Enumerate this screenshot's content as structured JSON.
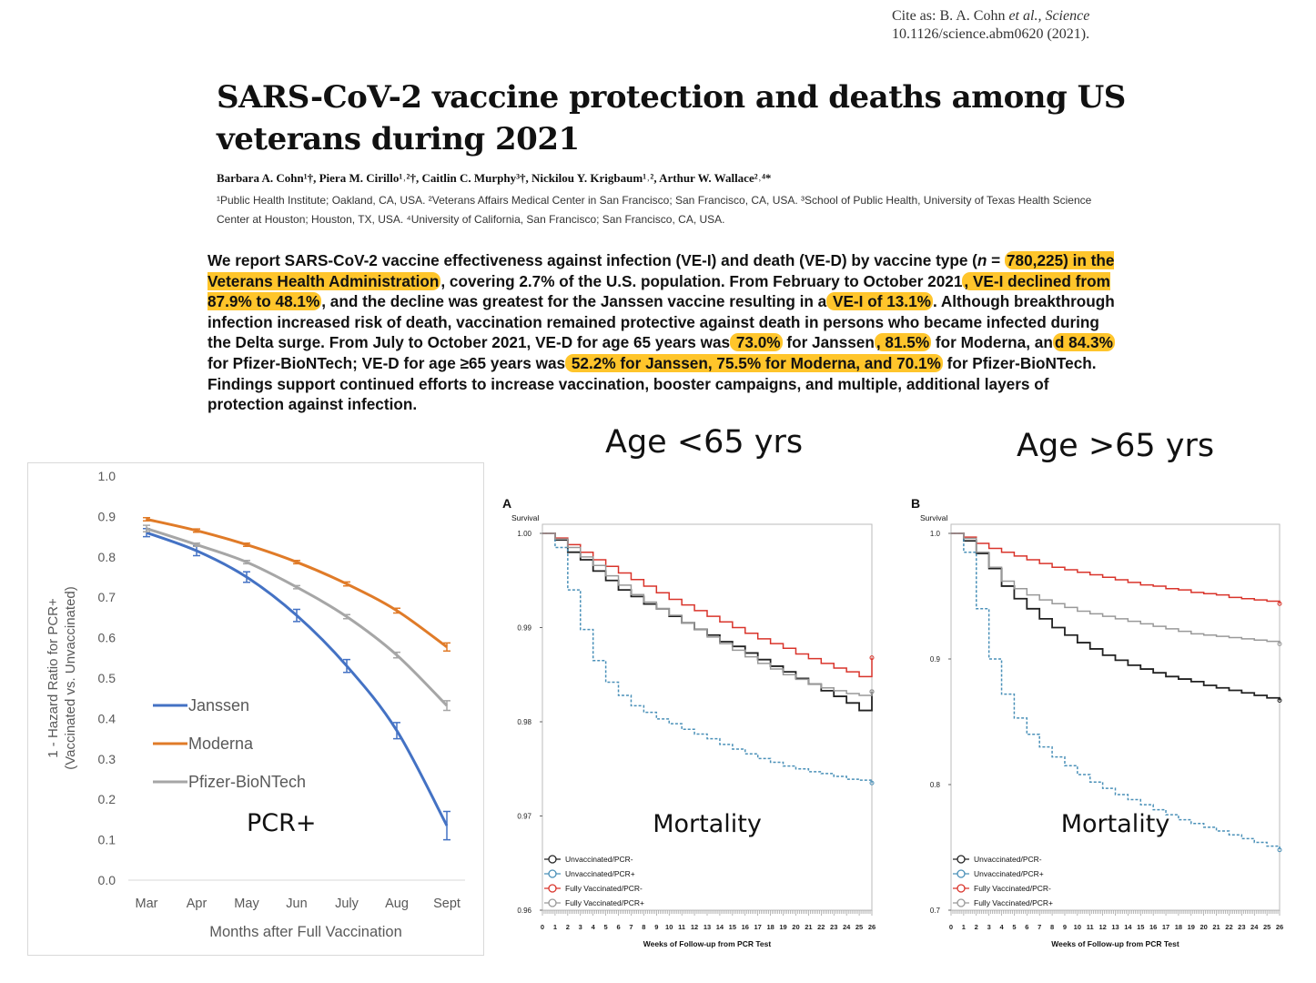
{
  "header": {
    "cite_line1_prefix": "Cite as: B. A. Cohn ",
    "cite_line1_italic": "et al., Science",
    "cite_line2": "10.1126/science.abm0620 (2021).",
    "title": "SARS-CoV-2 vaccine protection and deaths among US veterans during 2021",
    "authors": "Barbara A. Cohn¹†, Piera M. Cirillo¹˒²†, Caitlin C. Murphy³†, Nickilou Y. Krigbaum¹˒², Arthur W. Wallace²˒⁴*",
    "affiliations": "¹Public Health Institute; Oakland, CA, USA. ²Veterans Affairs Medical Center in San Francisco; San Francisco, CA, USA. ³School of Public Health, University of Texas Health Science Center at Houston; Houston, TX, USA. ⁴University of California, San Francisco; San Francisco, CA, USA."
  },
  "abstract": {
    "p1": "We report SARS-CoV-2 vaccine effectiveness against infection (VE-I) and death (VE-D) by vaccine type (",
    "n_italic": "n",
    "p2": " = ",
    "h1": "780,225) in the Veterans Health Administration",
    "p3": ", covering 2.7% of the U.S. population. From February to October 2021",
    "h2": ", VE-I declined from 87.9% to 48.1%",
    "p4": ", and the decline was greatest for the Janssen vaccine resulting in a",
    "h3": " VE-I of 13.1%",
    "p5": ". Although breakthrough infection increased risk of death, vaccination remained protective against death in persons who became infected during the Delta surge. From July to October 2021, VE-D for age 65 years was",
    "h4": " 73.0%",
    "p6": " for Janssen",
    "h5": ", 81.5%",
    "p7": " for Moderna, an",
    "h6": "d 84.3%",
    "p8": " for Pfizer-BioNTech; VE-D for age ≥65 years was",
    "h7": " 52.2% for Janssen, 75.5% for Moderna, and 70.1%",
    "p9": " for Pfizer-BioNTech. Findings support continued efforts to increase vaccination, booster campaigns, and multiple, additional layers of protection against infection."
  },
  "labels": {
    "age_lt": "Age <65 yrs",
    "age_gt": "Age >65 yrs"
  },
  "colors": {
    "janssen": "#4472c4",
    "moderna": "#e07b28",
    "pfizer": "#a6a6a6",
    "highlight": "#ffc52b",
    "km_unvax_neg": "#222222",
    "km_unvax_pos": "#4a90b8",
    "km_vax_neg": "#d9342b",
    "km_vax_pos": "#999999"
  },
  "chart_data": [
    {
      "type": "line",
      "title": "",
      "overlay": "PCR+",
      "xlabel": "Months after Full Vaccination",
      "ylabel_line1": "1 - Hazard Ratio for PCR+",
      "ylabel_line2": "(Vaccinated vs. Unvaccinated)",
      "categories": [
        "Mar",
        "Apr",
        "May",
        "Jun",
        "July",
        "Aug",
        "Sept"
      ],
      "ylim": [
        0,
        1
      ],
      "yticks": [
        "0.0",
        "0.1",
        "0.2",
        "0.3",
        "0.4",
        "0.5",
        "0.6",
        "0.7",
        "0.8",
        "0.9",
        "1.0"
      ],
      "series": [
        {
          "name": "Janssen",
          "values": [
            0.86,
            0.815,
            0.75,
            0.655,
            0.53,
            0.37,
            0.135
          ],
          "err": [
            0.01,
            0.012,
            0.013,
            0.015,
            0.016,
            0.02,
            0.035
          ]
        },
        {
          "name": "Moderna",
          "values": [
            0.893,
            0.865,
            0.83,
            0.787,
            0.733,
            0.667,
            0.577
          ],
          "err": [
            0.004,
            0.004,
            0.004,
            0.004,
            0.005,
            0.006,
            0.01
          ]
        },
        {
          "name": "Pfizer-BioNTech",
          "values": [
            0.87,
            0.83,
            0.787,
            0.725,
            0.652,
            0.557,
            0.432
          ],
          "err": [
            0.008,
            0.004,
            0.004,
            0.004,
            0.005,
            0.007,
            0.012
          ]
        }
      ]
    },
    {
      "type": "line",
      "panel": "A",
      "overlay": "Mortality",
      "ylabel": "Survival",
      "xlabel": "Weeks of Follow-up from PCR Test",
      "xlim": [
        0,
        26
      ],
      "ylim": [
        0.96,
        1.0
      ],
      "yticks": [
        "0.96",
        "0.97",
        "0.98",
        "0.99",
        "1.00"
      ],
      "xticks": [
        "0",
        "1",
        "2",
        "3",
        "4",
        "5",
        "6",
        "7",
        "8",
        "9",
        "10",
        "11",
        "12",
        "13",
        "14",
        "15",
        "16",
        "17",
        "18",
        "19",
        "20",
        "21",
        "22",
        "23",
        "24",
        "25",
        "26"
      ],
      "series": [
        {
          "name": "Unvaccinated/PCR-",
          "x": [
            0,
            1,
            2,
            3,
            4,
            5,
            6,
            7,
            8,
            9,
            10,
            11,
            12,
            13,
            14,
            15,
            16,
            17,
            18,
            19,
            20,
            21,
            22,
            23,
            24,
            25,
            26
          ],
          "values": [
            1.0,
            0.9993,
            0.998,
            0.9972,
            0.996,
            0.995,
            0.994,
            0.9933,
            0.9925,
            0.992,
            0.9912,
            0.9905,
            0.9898,
            0.9892,
            0.9885,
            0.988,
            0.9873,
            0.9866,
            0.9859,
            0.9853,
            0.9846,
            0.984,
            0.9833,
            0.9827,
            0.982,
            0.9812,
            0.9832
          ]
        },
        {
          "name": "Unvaccinated/PCR+",
          "x": [
            0,
            1,
            2,
            3,
            4,
            5,
            6,
            7,
            8,
            9,
            10,
            11,
            12,
            13,
            14,
            15,
            16,
            17,
            18,
            19,
            20,
            21,
            22,
            23,
            24,
            25,
            26
          ],
          "values": [
            1.0,
            0.9985,
            0.994,
            0.9898,
            0.9865,
            0.9842,
            0.9828,
            0.9817,
            0.981,
            0.9803,
            0.9798,
            0.9792,
            0.9787,
            0.9782,
            0.9776,
            0.9771,
            0.9766,
            0.9761,
            0.9757,
            0.9753,
            0.975,
            0.9747,
            0.9745,
            0.9742,
            0.9739,
            0.9738,
            0.9735
          ]
        },
        {
          "name": "Fully Vaccinated/PCR-",
          "x": [
            0,
            1,
            2,
            3,
            4,
            5,
            6,
            7,
            8,
            9,
            10,
            11,
            12,
            13,
            14,
            15,
            16,
            17,
            18,
            19,
            20,
            21,
            22,
            23,
            24,
            25,
            26
          ],
          "values": [
            1.0,
            0.9995,
            0.9988,
            0.998,
            0.9972,
            0.9965,
            0.9958,
            0.9951,
            0.9944,
            0.9937,
            0.993,
            0.9924,
            0.9918,
            0.9912,
            0.9906,
            0.99,
            0.9894,
            0.9888,
            0.9883,
            0.9878,
            0.9872,
            0.9867,
            0.9862,
            0.9857,
            0.9853,
            0.9848,
            0.9868
          ]
        },
        {
          "name": "Fully Vaccinated/PCR+",
          "x": [
            0,
            1,
            2,
            3,
            4,
            5,
            6,
            7,
            8,
            9,
            10,
            11,
            12,
            13,
            14,
            15,
            16,
            17,
            18,
            19,
            20,
            21,
            22,
            23,
            24,
            25,
            26
          ],
          "values": [
            1.0,
            0.9994,
            0.9985,
            0.9975,
            0.9966,
            0.9955,
            0.9945,
            0.9935,
            0.9927,
            0.992,
            0.9913,
            0.9905,
            0.9898,
            0.989,
            0.9883,
            0.9876,
            0.9869,
            0.9862,
            0.9856,
            0.985,
            0.9845,
            0.984,
            0.9836,
            0.9833,
            0.983,
            0.9828,
            0.9832
          ]
        }
      ]
    },
    {
      "type": "line",
      "panel": "B",
      "overlay": "Mortality",
      "ylabel": "Survival",
      "xlabel": "Weeks of Follow-up from PCR Test",
      "xlim": [
        0,
        26
      ],
      "ylim": [
        0.7,
        1.0
      ],
      "yticks": [
        "0.7",
        "0.8",
        "0.9",
        "1.0"
      ],
      "xticks": [
        "0",
        "1",
        "2",
        "3",
        "4",
        "5",
        "6",
        "7",
        "8",
        "9",
        "10",
        "11",
        "12",
        "13",
        "14",
        "15",
        "16",
        "17",
        "18",
        "19",
        "20",
        "21",
        "22",
        "23",
        "24",
        "25",
        "26"
      ],
      "series": [
        {
          "name": "Unvaccinated/PCR-",
          "x": [
            0,
            1,
            2,
            3,
            4,
            5,
            6,
            7,
            8,
            9,
            10,
            11,
            12,
            13,
            14,
            15,
            16,
            17,
            18,
            19,
            20,
            21,
            22,
            23,
            24,
            25,
            26
          ],
          "values": [
            1.0,
            0.994,
            0.984,
            0.972,
            0.958,
            0.948,
            0.94,
            0.932,
            0.925,
            0.919,
            0.913,
            0.908,
            0.903,
            0.899,
            0.895,
            0.892,
            0.889,
            0.886,
            0.884,
            0.882,
            0.879,
            0.877,
            0.875,
            0.873,
            0.871,
            0.869,
            0.867
          ]
        },
        {
          "name": "Unvaccinated/PCR+",
          "x": [
            0,
            1,
            2,
            3,
            4,
            5,
            6,
            7,
            8,
            9,
            10,
            11,
            12,
            13,
            14,
            15,
            16,
            17,
            18,
            19,
            20,
            21,
            22,
            23,
            24,
            25,
            26
          ],
          "values": [
            1.0,
            0.985,
            0.94,
            0.9,
            0.872,
            0.853,
            0.84,
            0.83,
            0.822,
            0.815,
            0.808,
            0.802,
            0.797,
            0.792,
            0.788,
            0.784,
            0.78,
            0.776,
            0.772,
            0.769,
            0.766,
            0.763,
            0.76,
            0.757,
            0.754,
            0.751,
            0.748
          ]
        },
        {
          "name": "Fully Vaccinated/PCR-",
          "x": [
            0,
            1,
            2,
            3,
            4,
            5,
            6,
            7,
            8,
            9,
            10,
            11,
            12,
            13,
            14,
            15,
            16,
            17,
            18,
            19,
            20,
            21,
            22,
            23,
            24,
            25,
            26
          ],
          "values": [
            1.0,
            0.997,
            0.992,
            0.988,
            0.985,
            0.982,
            0.979,
            0.976,
            0.973,
            0.971,
            0.969,
            0.967,
            0.965,
            0.963,
            0.961,
            0.959,
            0.958,
            0.956,
            0.955,
            0.953,
            0.952,
            0.951,
            0.949,
            0.948,
            0.947,
            0.946,
            0.944
          ]
        },
        {
          "name": "Fully Vaccinated/PCR+",
          "x": [
            0,
            1,
            2,
            3,
            4,
            5,
            6,
            7,
            8,
            9,
            10,
            11,
            12,
            13,
            14,
            15,
            16,
            17,
            18,
            19,
            20,
            21,
            22,
            23,
            24,
            25,
            26
          ],
          "values": [
            1.0,
            0.996,
            0.985,
            0.973,
            0.962,
            0.956,
            0.951,
            0.947,
            0.944,
            0.941,
            0.938,
            0.936,
            0.934,
            0.932,
            0.93,
            0.928,
            0.926,
            0.924,
            0.922,
            0.92,
            0.919,
            0.918,
            0.917,
            0.916,
            0.915,
            0.914,
            0.912
          ]
        }
      ]
    }
  ]
}
